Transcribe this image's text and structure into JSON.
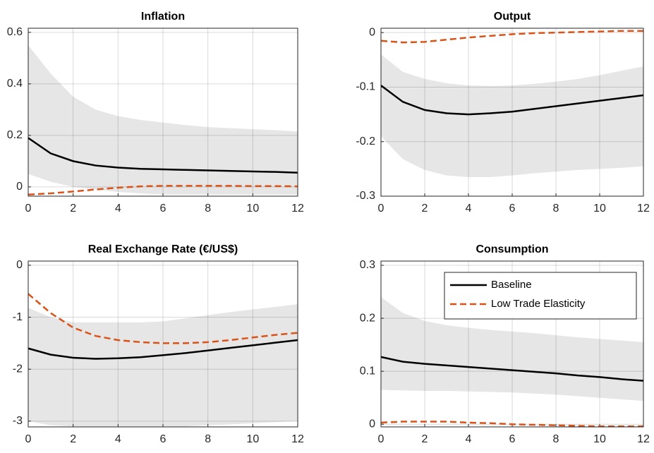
{
  "chart_data": [
    {
      "type": "line",
      "title": "Inflation",
      "x": [
        0,
        1,
        2,
        3,
        4,
        5,
        6,
        7,
        8,
        9,
        10,
        11,
        12
      ],
      "xlim": [
        0,
        12
      ],
      "xticks": [
        0,
        2,
        4,
        6,
        8,
        10,
        12
      ],
      "ylim": [
        -0.036,
        0.616
      ],
      "yticks": [
        0,
        0.2,
        0.4,
        0.6
      ],
      "grid": true,
      "band": {
        "color": "#e6e6e6",
        "upper": [
          0.55,
          0.44,
          0.35,
          0.3,
          0.275,
          0.26,
          0.25,
          0.24,
          0.232,
          0.228,
          0.224,
          0.22,
          0.215
        ],
        "lower": [
          0.05,
          0.02,
          0.0,
          -0.01,
          -0.02,
          -0.025,
          -0.03,
          -0.03,
          -0.03,
          -0.03,
          -0.03,
          -0.03,
          -0.03
        ]
      },
      "series": [
        {
          "color": "#000000",
          "style": "solid",
          "values": [
            0.19,
            0.13,
            0.1,
            0.083,
            0.075,
            0.07,
            0.068,
            0.066,
            0.064,
            0.062,
            0.06,
            0.058,
            0.055
          ]
        },
        {
          "color": "#d95319",
          "style": "dashed",
          "values": [
            -0.03,
            -0.025,
            -0.018,
            -0.01,
            -0.003,
            0.002,
            0.004,
            0.004,
            0.004,
            0.004,
            0.003,
            0.003,
            0.002
          ]
        }
      ]
    },
    {
      "type": "line",
      "title": "Output",
      "x": [
        0,
        1,
        2,
        3,
        4,
        5,
        6,
        7,
        8,
        9,
        10,
        11,
        12
      ],
      "xlim": [
        0,
        12
      ],
      "xticks": [
        0,
        2,
        4,
        6,
        8,
        10,
        12
      ],
      "ylim": [
        -0.3,
        0.008
      ],
      "yticks": [
        -0.3,
        -0.2,
        -0.1,
        0
      ],
      "grid": true,
      "band": {
        "color": "#e6e6e6",
        "upper": [
          -0.04,
          -0.072,
          -0.085,
          -0.093,
          -0.097,
          -0.098,
          -0.097,
          -0.094,
          -0.09,
          -0.085,
          -0.078,
          -0.07,
          -0.062
        ],
        "lower": [
          -0.19,
          -0.232,
          -0.252,
          -0.262,
          -0.265,
          -0.265,
          -0.262,
          -0.258,
          -0.255,
          -0.252,
          -0.25,
          -0.248,
          -0.245
        ]
      },
      "series": [
        {
          "color": "#000000",
          "style": "solid",
          "values": [
            -0.097,
            -0.127,
            -0.142,
            -0.148,
            -0.15,
            -0.148,
            -0.145,
            -0.14,
            -0.135,
            -0.13,
            -0.125,
            -0.12,
            -0.115
          ]
        },
        {
          "color": "#d95319",
          "style": "dashed",
          "values": [
            -0.015,
            -0.018,
            -0.017,
            -0.013,
            -0.009,
            -0.006,
            -0.003,
            -0.001,
            0,
            0.001,
            0.002,
            0.003,
            0.003
          ]
        }
      ]
    },
    {
      "type": "line",
      "title": "Real Exchange Rate (€/US$)",
      "x": [
        0,
        1,
        2,
        3,
        4,
        5,
        6,
        7,
        8,
        9,
        10,
        11,
        12
      ],
      "xlim": [
        0,
        12
      ],
      "xticks": [
        0,
        2,
        4,
        6,
        8,
        10,
        12
      ],
      "ylim": [
        -3.11,
        0.08
      ],
      "yticks": [
        -3,
        -2,
        -1,
        0
      ],
      "grid": true,
      "band": {
        "color": "#e6e6e6",
        "upper": [
          -0.82,
          -1.0,
          -1.1,
          -1.1,
          -1.1,
          -1.1,
          -1.08,
          -1.02,
          -0.96,
          -0.9,
          -0.85,
          -0.8,
          -0.75
        ],
        "lower": [
          -3.0,
          -3.08,
          -3.1,
          -3.1,
          -3.1,
          -3.1,
          -3.1,
          -3.1,
          -3.08,
          -3.06,
          -3.04,
          -3.02,
          -3.0
        ]
      },
      "series": [
        {
          "color": "#000000",
          "style": "solid",
          "values": [
            -1.6,
            -1.72,
            -1.78,
            -1.8,
            -1.79,
            -1.77,
            -1.73,
            -1.69,
            -1.64,
            -1.59,
            -1.54,
            -1.49,
            -1.44
          ]
        },
        {
          "color": "#d95319",
          "style": "dashed",
          "values": [
            -0.55,
            -0.92,
            -1.2,
            -1.36,
            -1.44,
            -1.48,
            -1.5,
            -1.5,
            -1.48,
            -1.44,
            -1.39,
            -1.34,
            -1.3
          ]
        }
      ]
    },
    {
      "type": "line",
      "title": "Consumption",
      "x": [
        0,
        1,
        2,
        3,
        4,
        5,
        6,
        7,
        8,
        9,
        10,
        11,
        12
      ],
      "xlim": [
        0,
        12
      ],
      "xticks": [
        0,
        2,
        4,
        6,
        8,
        10,
        12
      ],
      "ylim": [
        -0.005,
        0.308
      ],
      "yticks": [
        0,
        0.1,
        0.2,
        0.3
      ],
      "grid": true,
      "legend": "northeast",
      "band": {
        "color": "#e6e6e6",
        "upper": [
          0.24,
          0.21,
          0.195,
          0.187,
          0.182,
          0.178,
          0.175,
          0.172,
          0.168,
          0.164,
          0.161,
          0.158,
          0.155
        ],
        "lower": [
          0.065,
          0.064,
          0.063,
          0.063,
          0.062,
          0.061,
          0.06,
          0.058,
          0.056,
          0.053,
          0.05,
          0.047,
          0.044
        ]
      },
      "series": [
        {
          "name": "Baseline",
          "color": "#000000",
          "style": "solid",
          "values": [
            0.127,
            0.118,
            0.114,
            0.111,
            0.108,
            0.105,
            0.102,
            0.099,
            0.096,
            0.092,
            0.089,
            0.085,
            0.082
          ]
        },
        {
          "name": "Low Trade Elasticity",
          "color": "#d95319",
          "style": "dashed",
          "values": [
            0.003,
            0.005,
            0.005,
            0.005,
            0.003,
            0.002,
            0,
            -0.001,
            -0.002,
            -0.003,
            -0.004,
            -0.004,
            -0.004
          ]
        }
      ]
    }
  ]
}
